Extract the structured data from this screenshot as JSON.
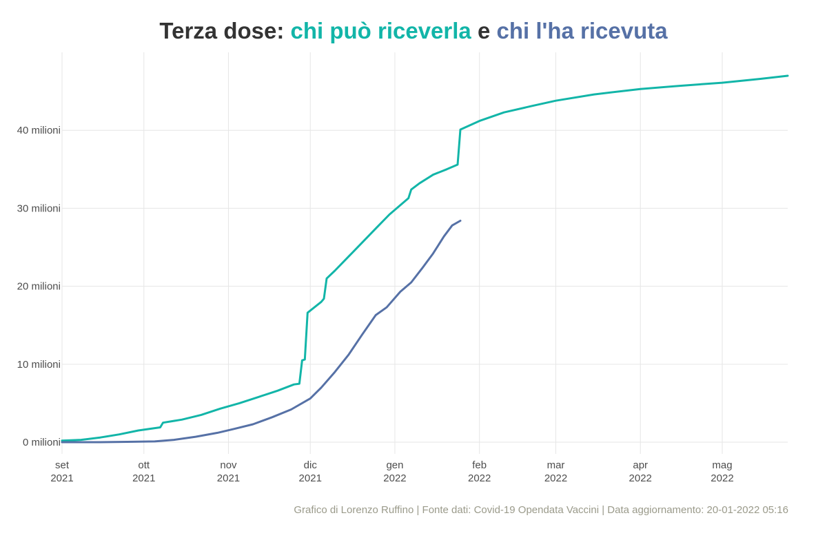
{
  "title": {
    "prefix": "Terza dose: ",
    "part1": "chi può riceverla",
    "middle": " e ",
    "part2": "chi l'ha ricevuta"
  },
  "caption": "Grafico di Lorenzo Ruffino | Fonte dati: Covid-19 Opendata Vaccini | Data aggiornamento: 20-01-2022 05:16",
  "colors": {
    "eligible": "#12b5a8",
    "received": "#5671a6",
    "title": "#333333",
    "grid": "#e6e6e6",
    "caption": "#9a9a8a"
  },
  "chart_data": {
    "type": "line",
    "title": "Terza dose: chi può riceverla e chi l'ha ricevuta",
    "xlabel": "",
    "ylabel": "",
    "xlim": [
      "2021-09-01",
      "2022-05-25"
    ],
    "ylim": [
      -1.5,
      50
    ],
    "grid": true,
    "legend": "none (colored title words)",
    "y_ticks": [
      {
        "value": 0,
        "label": "0 milioni"
      },
      {
        "value": 10,
        "label": "10 milioni"
      },
      {
        "value": 20,
        "label": "20 milioni"
      },
      {
        "value": 30,
        "label": "30 milioni"
      },
      {
        "value": 40,
        "label": "40 milioni"
      }
    ],
    "x_ticks": [
      {
        "date": "2021-09-01",
        "month": "set",
        "year": "2021"
      },
      {
        "date": "2021-10-01",
        "month": "ott",
        "year": "2021"
      },
      {
        "date": "2021-11-01",
        "month": "nov",
        "year": "2021"
      },
      {
        "date": "2021-12-01",
        "month": "dic",
        "year": "2021"
      },
      {
        "date": "2022-01-01",
        "month": "gen",
        "year": "2022"
      },
      {
        "date": "2022-02-01",
        "month": "feb",
        "year": "2022"
      },
      {
        "date": "2022-03-01",
        "month": "mar",
        "year": "2022"
      },
      {
        "date": "2022-04-01",
        "month": "apr",
        "year": "2022"
      },
      {
        "date": "2022-05-01",
        "month": "mag",
        "year": "2022"
      }
    ],
    "series": [
      {
        "name": "chi può riceverla",
        "color": "#12b5a8",
        "points": [
          [
            "2021-09-01",
            0.2
          ],
          [
            "2021-09-08",
            0.3
          ],
          [
            "2021-09-15",
            0.6
          ],
          [
            "2021-09-22",
            1.0
          ],
          [
            "2021-09-29",
            1.5
          ],
          [
            "2021-10-07",
            1.9
          ],
          [
            "2021-10-08",
            2.5
          ],
          [
            "2021-10-15",
            2.9
          ],
          [
            "2021-10-22",
            3.5
          ],
          [
            "2021-10-29",
            4.3
          ],
          [
            "2021-11-05",
            5.0
          ],
          [
            "2021-11-12",
            5.8
          ],
          [
            "2021-11-19",
            6.6
          ],
          [
            "2021-11-25",
            7.4
          ],
          [
            "2021-11-27",
            7.5
          ],
          [
            "2021-11-28",
            10.5
          ],
          [
            "2021-11-29",
            10.6
          ],
          [
            "2021-11-30",
            16.6
          ],
          [
            "2021-12-05",
            18.0
          ],
          [
            "2021-12-06",
            18.4
          ],
          [
            "2021-12-07",
            21.0
          ],
          [
            "2021-12-10",
            22.0
          ],
          [
            "2021-12-15",
            23.8
          ],
          [
            "2021-12-20",
            25.6
          ],
          [
            "2021-12-25",
            27.4
          ],
          [
            "2021-12-30",
            29.2
          ],
          [
            "2022-01-04",
            30.7
          ],
          [
            "2022-01-06",
            31.3
          ],
          [
            "2022-01-07",
            32.4
          ],
          [
            "2022-01-10",
            33.2
          ],
          [
            "2022-01-15",
            34.3
          ],
          [
            "2022-01-20",
            35.0
          ],
          [
            "2022-01-24",
            35.6
          ],
          [
            "2022-01-25",
            40.1
          ],
          [
            "2022-02-01",
            41.2
          ],
          [
            "2022-02-10",
            42.3
          ],
          [
            "2022-02-20",
            43.1
          ],
          [
            "2022-03-01",
            43.8
          ],
          [
            "2022-03-15",
            44.6
          ],
          [
            "2022-04-01",
            45.3
          ],
          [
            "2022-04-15",
            45.7
          ],
          [
            "2022-05-01",
            46.1
          ],
          [
            "2022-05-15",
            46.6
          ],
          [
            "2022-05-25",
            47.0
          ]
        ]
      },
      {
        "name": "chi l'ha ricevuta",
        "color": "#5671a6",
        "points": [
          [
            "2021-09-01",
            0.0
          ],
          [
            "2021-09-15",
            0.0
          ],
          [
            "2021-09-25",
            0.05
          ],
          [
            "2021-10-05",
            0.1
          ],
          [
            "2021-10-12",
            0.3
          ],
          [
            "2021-10-20",
            0.7
          ],
          [
            "2021-10-28",
            1.2
          ],
          [
            "2021-11-03",
            1.7
          ],
          [
            "2021-11-10",
            2.3
          ],
          [
            "2021-11-17",
            3.2
          ],
          [
            "2021-11-24",
            4.2
          ],
          [
            "2021-12-01",
            5.6
          ],
          [
            "2021-12-05",
            7.0
          ],
          [
            "2021-12-10",
            9.0
          ],
          [
            "2021-12-15",
            11.2
          ],
          [
            "2021-12-20",
            13.8
          ],
          [
            "2021-12-25",
            16.3
          ],
          [
            "2021-12-29",
            17.3
          ],
          [
            "2022-01-03",
            19.3
          ],
          [
            "2022-01-07",
            20.5
          ],
          [
            "2022-01-11",
            22.3
          ],
          [
            "2022-01-15",
            24.2
          ],
          [
            "2022-01-19",
            26.4
          ],
          [
            "2022-01-22",
            27.8
          ],
          [
            "2022-01-25",
            28.4
          ]
        ]
      }
    ]
  }
}
